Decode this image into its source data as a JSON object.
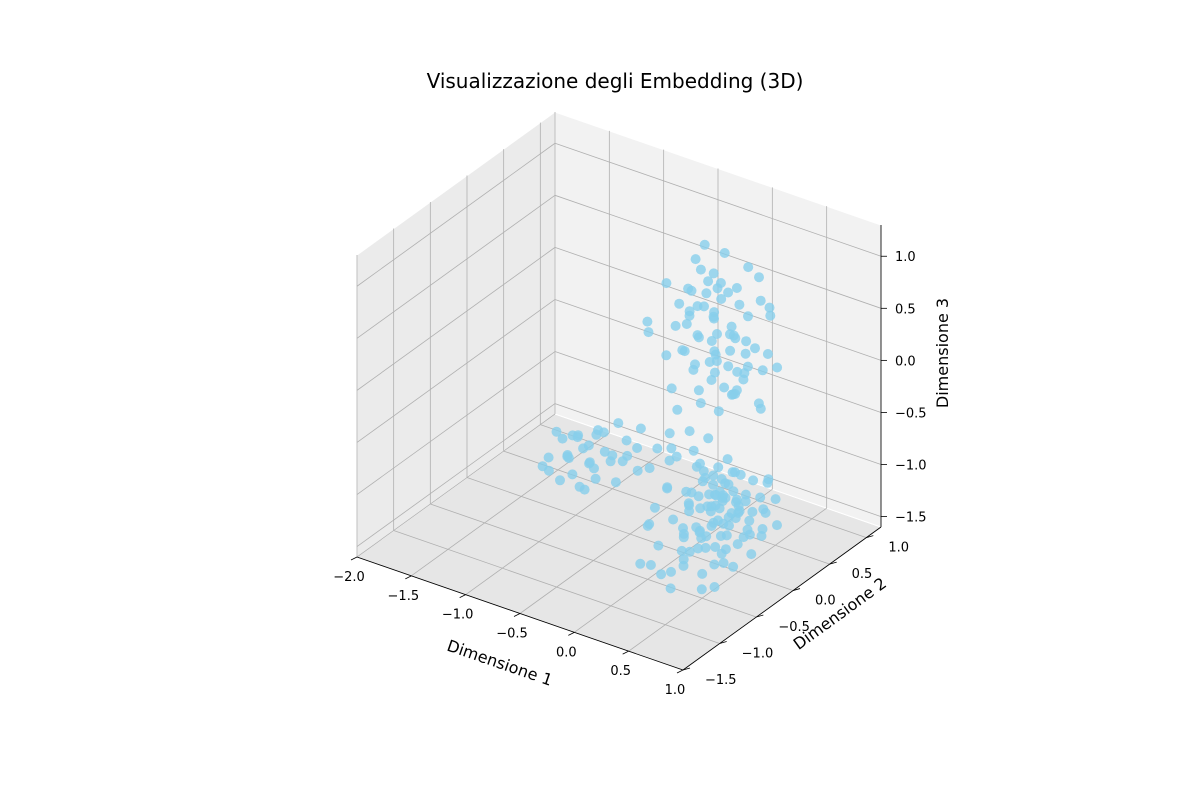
{
  "chart_data": {
    "type": "scatter",
    "title": "Visualizzazione degli Embedding (3D)",
    "xlabel": "Dimensione 1",
    "ylabel": "Dimensione 2",
    "zlabel": "Dimensione 3",
    "xlim": [
      -2.0,
      1.0
    ],
    "ylim": [
      -1.5,
      1.2
    ],
    "zlim": [
      -1.6,
      1.3
    ],
    "x_ticks": [
      "−2.0",
      "−1.5",
      "−1.0",
      "−0.5",
      "0.0",
      "0.5",
      "1.0"
    ],
    "y_ticks": [
      "−1.5",
      "−1.0",
      "−0.5",
      "0.0",
      "0.5",
      "1.0"
    ],
    "z_ticks": [
      "−1.5",
      "−1.0",
      "−0.5",
      "0.0",
      "0.5",
      "1.0"
    ],
    "x_tick_values": [
      -2.0,
      -1.5,
      -1.0,
      -0.5,
      0.0,
      0.5,
      1.0
    ],
    "y_tick_values": [
      -1.5,
      -1.0,
      -0.5,
      0.0,
      0.5,
      1.0
    ],
    "z_tick_values": [
      -1.5,
      -1.0,
      -0.5,
      0.0,
      0.5,
      1.0
    ],
    "marker_color": "#87ceeb",
    "grid": true,
    "points": [
      [
        -1.62,
        0.55,
        -1.55
      ],
      [
        -1.55,
        0.45,
        -1.6
      ],
      [
        -1.48,
        0.6,
        -1.5
      ],
      [
        -1.4,
        0.5,
        -1.45
      ],
      [
        -1.35,
        0.62,
        -1.4
      ],
      [
        -1.3,
        0.4,
        -1.52
      ],
      [
        -1.45,
        0.7,
        -1.35
      ],
      [
        -1.25,
        0.55,
        -1.3
      ],
      [
        -1.2,
        0.48,
        -1.42
      ],
      [
        -1.38,
        0.35,
        -1.58
      ],
      [
        -1.52,
        0.32,
        -1.48
      ],
      [
        -1.15,
        0.62,
        -1.36
      ],
      [
        -1.1,
        0.42,
        -1.5
      ],
      [
        -1.28,
        0.72,
        -1.25
      ],
      [
        -1.05,
        0.55,
        -1.38
      ],
      [
        -1.42,
        0.58,
        -1.28
      ],
      [
        -1.32,
        0.5,
        -1.22
      ],
      [
        -1.18,
        0.65,
        -1.2
      ],
      [
        -1.58,
        0.68,
        -1.42
      ],
      [
        -1.0,
        0.5,
        -1.28
      ],
      [
        -1.22,
        0.38,
        -1.6
      ],
      [
        -0.95,
        0.62,
        -1.18
      ],
      [
        -1.12,
        0.3,
        -1.55
      ],
      [
        -1.48,
        0.45,
        -1.2
      ],
      [
        -0.9,
        0.4,
        -1.45
      ],
      [
        -0.85,
        0.48,
        -1.22
      ],
      [
        -1.36,
        0.42,
        -1.38
      ],
      [
        -1.08,
        0.7,
        -1.1
      ],
      [
        -1.02,
        0.28,
        -1.3
      ],
      [
        -0.8,
        0.55,
        -1.38
      ],
      [
        -1.26,
        0.58,
        -1.48
      ],
      [
        -1.16,
        0.52,
        -1.15
      ],
      [
        -0.05,
        0.3,
        0.95
      ],
      [
        0.05,
        0.25,
        0.9
      ],
      [
        0.1,
        0.35,
        0.85
      ],
      [
        -0.1,
        0.2,
        0.8
      ],
      [
        0.0,
        0.4,
        0.88
      ],
      [
        0.15,
        0.28,
        0.75
      ],
      [
        -0.15,
        0.32,
        0.7
      ],
      [
        0.08,
        0.15,
        0.72
      ],
      [
        0.2,
        0.3,
        0.82
      ],
      [
        -0.08,
        0.42,
        0.65
      ],
      [
        0.12,
        0.22,
        0.6
      ],
      [
        0.25,
        0.38,
        0.68
      ],
      [
        -0.02,
        0.1,
        0.62
      ],
      [
        0.18,
        0.45,
        0.78
      ],
      [
        0.3,
        0.2,
        0.58
      ],
      [
        -0.12,
        0.25,
        0.55
      ],
      [
        0.05,
        0.33,
        0.5
      ],
      [
        0.22,
        0.12,
        0.52
      ],
      [
        0.35,
        0.35,
        0.62
      ],
      [
        -0.05,
        0.48,
        0.45
      ],
      [
        0.1,
        0.05,
        0.48
      ],
      [
        0.28,
        0.28,
        0.42
      ],
      [
        0.0,
        0.18,
        0.4
      ],
      [
        0.15,
        0.4,
        0.35
      ],
      [
        0.32,
        0.15,
        0.38
      ],
      [
        -0.18,
        0.3,
        0.38
      ],
      [
        0.4,
        0.25,
        0.45
      ],
      [
        0.05,
        0.3,
        0.3
      ],
      [
        0.2,
        0.05,
        0.28
      ],
      [
        0.38,
        0.4,
        0.3
      ],
      [
        -0.1,
        0.12,
        0.25
      ],
      [
        0.12,
        0.25,
        0.22
      ],
      [
        0.28,
        0.42,
        0.2
      ],
      [
        0.45,
        0.2,
        0.25
      ],
      [
        0.02,
        0.38,
        0.15
      ],
      [
        0.18,
        0.15,
        0.12
      ],
      [
        0.35,
        0.3,
        0.1
      ],
      [
        -0.05,
        0.22,
        0.08
      ],
      [
        0.25,
        0.35,
        0.05
      ],
      [
        0.1,
        0.45,
        0.0
      ],
      [
        0.4,
        0.1,
        0.02
      ],
      [
        0.08,
        0.08,
        -0.05
      ],
      [
        0.3,
        0.22,
        -0.08
      ],
      [
        0.15,
        0.32,
        -0.12
      ],
      [
        -0.02,
        0.4,
        -0.15
      ],
      [
        0.22,
        0.48,
        -0.1
      ],
      [
        0.45,
        0.35,
        -0.18
      ],
      [
        0.05,
        0.15,
        -0.22
      ],
      [
        -0.25,
        0.3,
        0.55
      ],
      [
        -0.3,
        0.2,
        0.78
      ],
      [
        0.48,
        0.45,
        0.7
      ],
      [
        -0.2,
        0.45,
        0.92
      ],
      [
        0.35,
        0.5,
        0.92
      ],
      [
        0.0,
        0.55,
        1.0
      ],
      [
        0.25,
        0.5,
        0.98
      ],
      [
        -0.15,
        0.5,
        1.05
      ],
      [
        0.5,
        0.3,
        0.85
      ],
      [
        0.42,
        0.55,
        0.55
      ],
      [
        0.4,
        -0.2,
        -0.7
      ],
      [
        0.45,
        -0.25,
        -0.75
      ],
      [
        0.5,
        -0.18,
        -0.8
      ],
      [
        0.55,
        -0.3,
        -0.72
      ],
      [
        0.48,
        -0.35,
        -0.85
      ],
      [
        0.42,
        -0.1,
        -0.9
      ],
      [
        0.6,
        -0.22,
        -0.68
      ],
      [
        0.52,
        -0.4,
        -0.95
      ],
      [
        0.38,
        -0.28,
        -0.6
      ],
      [
        0.58,
        -0.12,
        -0.88
      ],
      [
        0.65,
        -0.32,
        -0.82
      ],
      [
        0.45,
        -0.45,
        -0.78
      ],
      [
        0.35,
        -0.15,
        -0.95
      ],
      [
        0.62,
        -0.42,
        -1.0
      ],
      [
        0.5,
        -0.05,
        -0.62
      ],
      [
        0.7,
        -0.2,
        -0.75
      ],
      [
        0.4,
        -0.38,
        -1.05
      ],
      [
        0.55,
        -0.5,
        -0.7
      ],
      [
        0.68,
        -0.08,
        -0.92
      ],
      [
        0.3,
        -0.25,
        -0.82
      ],
      [
        0.72,
        -0.35,
        -0.65
      ],
      [
        0.48,
        -0.55,
        -0.9
      ],
      [
        0.58,
        -0.28,
        -1.08
      ],
      [
        0.35,
        -0.42,
        -0.68
      ],
      [
        0.62,
        -0.15,
        -0.55
      ],
      [
        0.42,
        -0.02,
        -0.78
      ],
      [
        0.75,
        -0.25,
        -0.98
      ],
      [
        0.52,
        -0.48,
        -1.12
      ],
      [
        0.28,
        -0.35,
        -0.92
      ],
      [
        0.66,
        -0.45,
        -0.58
      ],
      [
        0.46,
        -0.22,
        -0.5
      ],
      [
        0.8,
        -0.3,
        -0.85
      ],
      [
        0.38,
        -0.5,
        -0.75
      ],
      [
        0.56,
        -0.6,
        -0.95
      ],
      [
        0.7,
        -0.1,
        -0.6
      ],
      [
        0.44,
        -0.12,
        -1.1
      ],
      [
        0.6,
        -0.38,
        -0.48
      ],
      [
        0.32,
        -0.08,
        -0.7
      ],
      [
        0.78,
        -0.42,
        -0.72
      ],
      [
        0.5,
        -0.32,
        -1.2
      ],
      [
        0.25,
        -0.2,
        -0.58
      ],
      [
        0.64,
        -0.55,
        -0.8
      ],
      [
        0.4,
        -0.6,
        -1.0
      ],
      [
        0.82,
        -0.18,
        -0.68
      ],
      [
        0.54,
        -0.1,
        -1.02
      ],
      [
        0.36,
        -0.32,
        -0.45
      ],
      [
        0.72,
        -0.5,
        -1.05
      ],
      [
        0.48,
        -0.65,
        -0.62
      ],
      [
        0.66,
        -0.25,
        -1.15
      ],
      [
        0.3,
        -0.45,
        -1.08
      ],
      [
        0.58,
        -0.02,
        -0.82
      ],
      [
        0.76,
        -0.05,
        -0.88
      ],
      [
        0.44,
        -0.4,
        -0.55
      ],
      [
        0.62,
        -0.62,
        -0.9
      ],
      [
        0.22,
        -0.3,
        -0.78
      ],
      [
        0.86,
        -0.38,
        -0.92
      ],
      [
        0.52,
        -0.18,
        -0.42
      ],
      [
        0.4,
        -0.52,
        -1.18
      ],
      [
        0.7,
        -0.58,
        -0.74
      ],
      [
        0.34,
        -0.02,
        -0.88
      ],
      [
        0.6,
        -0.48,
        -1.25
      ],
      [
        0.8,
        -0.12,
        -1.02
      ],
      [
        0.46,
        -0.7,
        -0.84
      ],
      [
        0.26,
        -0.12,
        -0.66
      ],
      [
        0.68,
        -0.35,
        -0.4
      ],
      [
        0.56,
        -0.4,
        -0.64
      ],
      [
        0.5,
        -0.26,
        -0.86
      ],
      [
        0.43,
        -0.3,
        -0.73
      ],
      [
        0.61,
        -0.2,
        -0.79
      ],
      [
        0.47,
        -0.14,
        -0.69
      ],
      [
        0.53,
        -0.36,
        -0.77
      ],
      [
        0.57,
        -0.24,
        -0.93
      ],
      [
        0.2,
        -0.4,
        -0.4
      ],
      [
        0.15,
        -0.15,
        -0.3
      ],
      [
        0.1,
        -0.35,
        -0.5
      ],
      [
        0.18,
        -0.5,
        -0.65
      ],
      [
        0.05,
        -0.25,
        -0.45
      ],
      [
        0.12,
        -0.05,
        -0.55
      ],
      [
        0.0,
        -0.2,
        -0.35
      ],
      [
        0.22,
        0.0,
        -0.42
      ],
      [
        0.88,
        -0.55,
        -0.6
      ],
      [
        0.9,
        -0.2,
        -0.5
      ],
      [
        0.84,
        0.0,
        -0.78
      ],
      [
        0.78,
        -0.62,
        -1.1
      ],
      [
        0.35,
        -0.7,
        -1.3
      ],
      [
        0.65,
        -0.72,
        -1.2
      ],
      [
        0.92,
        -0.45,
        -1.05
      ],
      [
        0.1,
        -0.55,
        -0.85
      ],
      [
        -0.05,
        -0.4,
        -0.6
      ],
      [
        0.28,
        -0.65,
        -0.55
      ],
      [
        0.95,
        -0.3,
        -0.72
      ],
      [
        0.74,
        0.05,
        -0.65
      ],
      [
        0.05,
        0.05,
        0.15
      ],
      [
        -0.2,
        0.05,
        0.2
      ],
      [
        0.3,
        0.0,
        0.35
      ],
      [
        0.45,
        0.05,
        0.1
      ],
      [
        -0.4,
        0.0,
        -0.55
      ],
      [
        -0.5,
        -0.1,
        -0.85
      ],
      [
        -0.3,
        -0.2,
        -0.6
      ],
      [
        -0.6,
        0.4,
        0.1
      ],
      [
        0.2,
        -0.8,
        1.1
      ],
      [
        -0.2,
        0.2,
        -0.4
      ],
      [
        -0.35,
        0.15,
        -0.8
      ],
      [
        0.0,
        -0.6,
        -1.4
      ],
      [
        0.3,
        -0.9,
        -1.15
      ],
      [
        0.55,
        -0.85,
        -0.95
      ],
      [
        0.68,
        -0.8,
        -0.75
      ],
      [
        0.15,
        -0.72,
        -0.92
      ],
      [
        0.85,
        -0.65,
        -0.7
      ],
      [
        0.92,
        -0.1,
        -0.95
      ],
      [
        0.98,
        -0.4,
        -0.88
      ],
      [
        0.4,
        -0.78,
        -1.4
      ],
      [
        0.75,
        -0.7,
        -1.3
      ],
      [
        0.6,
        -0.9,
        -1.05
      ],
      [
        0.25,
        -0.85,
        -0.8
      ],
      [
        0.85,
        -0.75,
        -0.92
      ],
      [
        0.5,
        -0.75,
        -1.1
      ],
      [
        0.72,
        -0.88,
        -0.85
      ],
      [
        0.38,
        -0.88,
        -1.22
      ],
      [
        0.62,
        -0.68,
        -1.38
      ],
      [
        0.8,
        -0.52,
        -1.18
      ],
      [
        0.95,
        -0.6,
        -0.8
      ],
      [
        0.18,
        -0.62,
        -1.15
      ],
      [
        0.45,
        -0.82,
        -0.7
      ],
      [
        -0.1,
        0.6,
        0.6
      ],
      [
        -0.25,
        0.55,
        0.4
      ],
      [
        0.05,
        0.6,
        0.2
      ],
      [
        -0.35,
        0.4,
        0.25
      ],
      [
        0.55,
        0.45,
        0.15
      ],
      [
        0.6,
        0.25,
        0.4
      ],
      [
        0.35,
        0.55,
        0.0
      ],
      [
        -0.3,
        0.45,
        0.0
      ],
      [
        0.1,
        0.5,
        -0.3
      ],
      [
        0.4,
        0.45,
        -0.3
      ],
      [
        -0.15,
        0.05,
        -0.1
      ],
      [
        0.25,
        0.1,
        -0.2
      ]
    ]
  }
}
